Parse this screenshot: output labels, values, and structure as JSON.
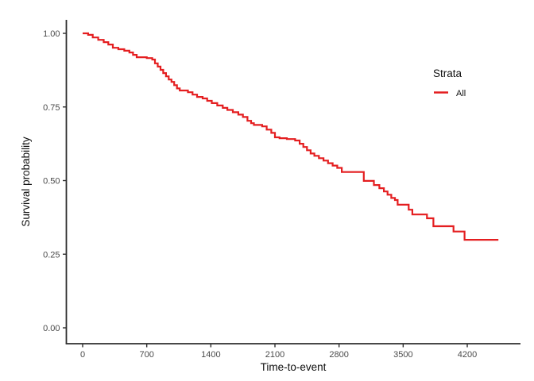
{
  "chart_data": {
    "type": "line",
    "subtype": "kaplan-meier-step-curve",
    "title": "",
    "xlabel": "Time-to-event",
    "ylabel": "Survival probability",
    "xlim": [
      -200,
      4800
    ],
    "ylim": [
      -0.05,
      1.05
    ],
    "grid": false,
    "background": "#FFFFFF",
    "colors": {
      "curve": "#E41E20",
      "axis_line": "#2E2E2E",
      "tick_text": "#4A4A4A",
      "title_text": "#0F0F0F"
    },
    "xticks": [
      {
        "value": 0,
        "label": "0"
      },
      {
        "value": 700,
        "label": "700"
      },
      {
        "value": 1400,
        "label": "1400"
      },
      {
        "value": 2100,
        "label": "2100"
      },
      {
        "value": 2800,
        "label": "2800"
      },
      {
        "value": 3500,
        "label": "3500"
      },
      {
        "value": 4200,
        "label": "4200"
      }
    ],
    "yticks": [
      {
        "value": 0.0,
        "label": "0.00"
      },
      {
        "value": 0.25,
        "label": "0.25"
      },
      {
        "value": 0.5,
        "label": "0.50"
      },
      {
        "value": 0.75,
        "label": "0.75"
      },
      {
        "value": 1.0,
        "label": "1.00"
      }
    ],
    "legend": {
      "title": "Strata",
      "position": "right",
      "entries": [
        {
          "label": "All",
          "color": "#E41E20"
        }
      ]
    },
    "series": [
      {
        "name": "All",
        "color": "#E41E20",
        "step": "post",
        "points": [
          [
            0,
            1.0
          ],
          [
            60,
            0.995
          ],
          [
            110,
            0.986
          ],
          [
            170,
            0.978
          ],
          [
            230,
            0.97
          ],
          [
            280,
            0.962
          ],
          [
            330,
            0.951
          ],
          [
            390,
            0.946
          ],
          [
            455,
            0.941
          ],
          [
            510,
            0.935
          ],
          [
            550,
            0.927
          ],
          [
            590,
            0.919
          ],
          [
            700,
            0.916
          ],
          [
            760,
            0.911
          ],
          [
            790,
            0.898
          ],
          [
            820,
            0.887
          ],
          [
            850,
            0.876
          ],
          [
            880,
            0.865
          ],
          [
            910,
            0.854
          ],
          [
            940,
            0.843
          ],
          [
            970,
            0.835
          ],
          [
            1000,
            0.824
          ],
          [
            1030,
            0.813
          ],
          [
            1060,
            0.806
          ],
          [
            1150,
            0.8
          ],
          [
            1200,
            0.792
          ],
          [
            1250,
            0.784
          ],
          [
            1310,
            0.779
          ],
          [
            1360,
            0.771
          ],
          [
            1410,
            0.763
          ],
          [
            1470,
            0.755
          ],
          [
            1530,
            0.747
          ],
          [
            1580,
            0.74
          ],
          [
            1640,
            0.732
          ],
          [
            1700,
            0.724
          ],
          [
            1750,
            0.716
          ],
          [
            1800,
            0.703
          ],
          [
            1840,
            0.695
          ],
          [
            1870,
            0.689
          ],
          [
            1960,
            0.684
          ],
          [
            2010,
            0.673
          ],
          [
            2060,
            0.662
          ],
          [
            2100,
            0.647
          ],
          [
            2150,
            0.644
          ],
          [
            2230,
            0.641
          ],
          [
            2320,
            0.636
          ],
          [
            2370,
            0.625
          ],
          [
            2410,
            0.614
          ],
          [
            2450,
            0.603
          ],
          [
            2490,
            0.592
          ],
          [
            2530,
            0.584
          ],
          [
            2580,
            0.576
          ],
          [
            2630,
            0.568
          ],
          [
            2680,
            0.559
          ],
          [
            2730,
            0.551
          ],
          [
            2780,
            0.543
          ],
          [
            2830,
            0.529
          ],
          [
            3070,
            0.499
          ],
          [
            3180,
            0.485
          ],
          [
            3240,
            0.474
          ],
          [
            3290,
            0.463
          ],
          [
            3330,
            0.452
          ],
          [
            3370,
            0.441
          ],
          [
            3410,
            0.434
          ],
          [
            3440,
            0.418
          ],
          [
            3560,
            0.401
          ],
          [
            3600,
            0.385
          ],
          [
            3760,
            0.372
          ],
          [
            3830,
            0.345
          ],
          [
            4050,
            0.327
          ],
          [
            4170,
            0.299
          ],
          [
            4540,
            0.299
          ]
        ]
      }
    ]
  }
}
